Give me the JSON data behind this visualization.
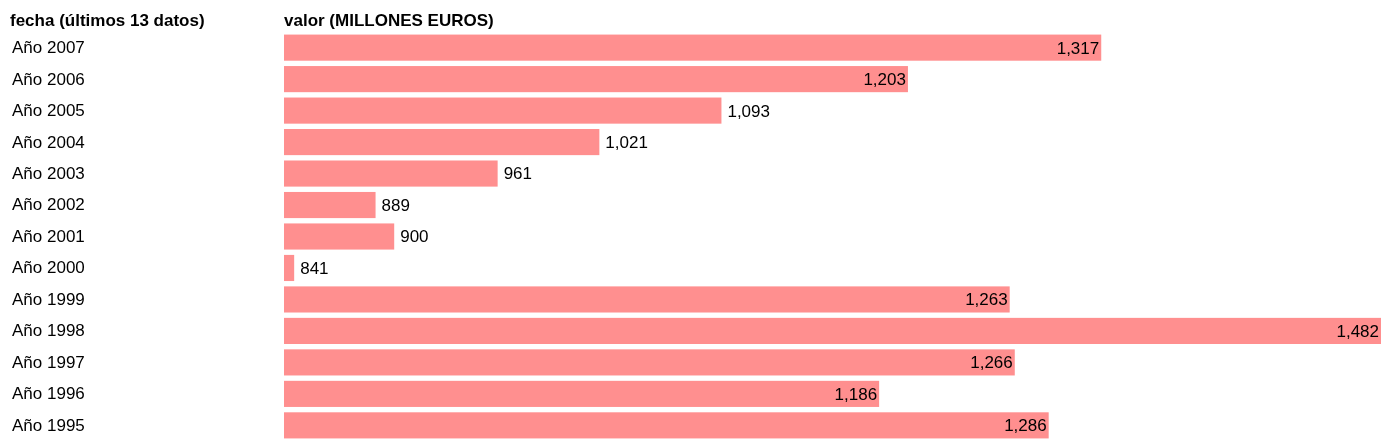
{
  "chart_data": {
    "type": "bar",
    "orientation": "horizontal",
    "ylabel": "fecha (últimos 13 datos)",
    "xlabel": "valor (MILLONES EUROS)",
    "categories": [
      "Año 2007",
      "Año 2006",
      "Año 2005",
      "Año 2004",
      "Año 2003",
      "Año 2002",
      "Año 2001",
      "Año 2000",
      "Año 1999",
      "Año 1998",
      "Año 1997",
      "Año 1996",
      "Año 1995"
    ],
    "values": [
      1317,
      1203,
      1093,
      1021,
      961,
      889,
      900,
      841,
      1263,
      1482,
      1266,
      1186,
      1286
    ],
    "value_labels": [
      "1,317",
      "1,203",
      "1,093",
      "1,021",
      "961",
      "889",
      "900",
      "841",
      "1,263",
      "1,482",
      "1,266",
      "1,186",
      "1,286"
    ],
    "color": "#ff8f8f",
    "xlim": [
      835,
      1482
    ],
    "tick_labels": "y"
  }
}
